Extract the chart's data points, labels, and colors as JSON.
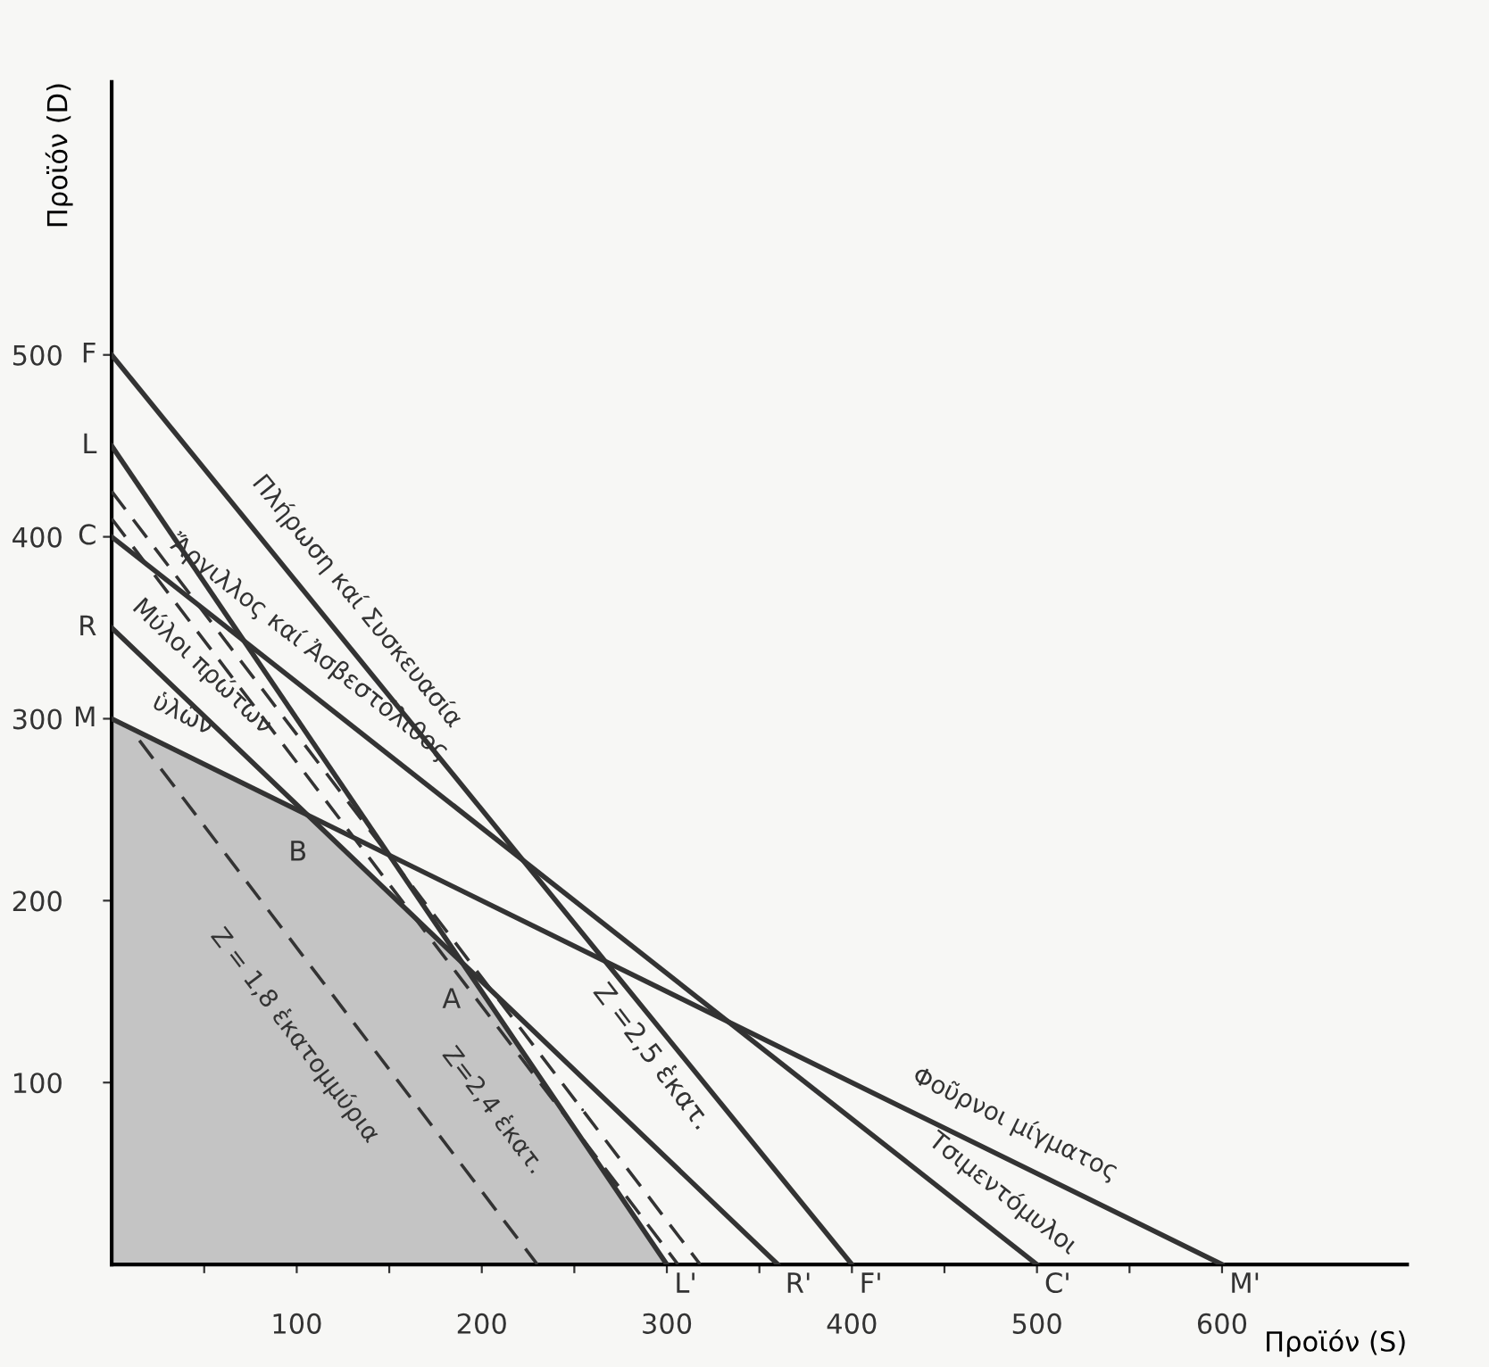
{
  "chart_data": {
    "type": "line",
    "xlabel": "Προϊόν (S)",
    "ylabel": "Προϊόν (D)",
    "xlim": [
      0,
      700
    ],
    "ylim": [
      0,
      650
    ],
    "xticks": [
      {
        "value": 50,
        "label": null
      },
      100,
      {
        "value": 150,
        "label": null
      },
      200,
      {
        "value": 250,
        "label": null
      },
      300,
      {
        "value": 350,
        "label": null
      },
      400,
      {
        "value": 450,
        "label": null
      },
      500,
      {
        "value": 550,
        "label": null
      },
      600
    ],
    "yticks": [
      100,
      200,
      300,
      400,
      500
    ],
    "grid": false,
    "series": [
      {
        "type": "area",
        "color": "#c4c4c4",
        "x": [
          0,
          106,
          189,
          300
        ],
        "values": [
          300,
          247,
          166,
          0
        ]
      },
      {
        "color": "#333333",
        "x": [
          0,
          400
        ],
        "values": [
          500,
          0
        ]
      },
      {
        "color": "#333333",
        "x": [
          0,
          300
        ],
        "values": [
          450,
          0
        ]
      },
      {
        "color": "#333333",
        "x": [
          0,
          500
        ],
        "values": [
          400,
          0
        ]
      },
      {
        "color": "#333333",
        "x": [
          0,
          360
        ],
        "values": [
          350,
          0
        ]
      },
      {
        "color": "#333333",
        "x": [
          0,
          600
        ],
        "values": [
          300,
          0
        ]
      },
      {
        "color": "#333333",
        "line_style": "dashed",
        "x": [
          15,
          230
        ],
        "values": [
          288,
          0
        ]
      },
      {
        "color": "#333333",
        "line_style": "dashed",
        "x": [
          0,
          306
        ],
        "values": [
          410,
          0
        ]
      },
      {
        "color": "#333333",
        "line_style": "dashed",
        "x": [
          0,
          318
        ],
        "values": [
          425,
          0
        ]
      }
    ],
    "annotations": [
      {
        "text": "F",
        "x": 0,
        "y": 500
      },
      {
        "text": "L",
        "x": 0,
        "y": 450
      },
      {
        "text": "C",
        "x": 0,
        "y": 400
      },
      {
        "text": "R",
        "x": 0,
        "y": 350
      },
      {
        "text": "M",
        "x": 0,
        "y": 300
      },
      {
        "text": "B",
        "x": 106,
        "y": 247
      },
      {
        "text": "A",
        "x": 189,
        "y": 166
      },
      {
        "text": "F'",
        "x": 400,
        "y": 0
      },
      {
        "text": "C'",
        "x": 500,
        "y": 0
      },
      {
        "text": "R'",
        "x": 360,
        "y": 0
      },
      {
        "text": "L'",
        "x": 300,
        "y": 0
      },
      {
        "text": "M'",
        "x": 600,
        "y": 0
      },
      {
        "text": "Πλήρωση καί Συσκευασία",
        "x": 118,
        "y": 352.5
      },
      {
        "text": "Ἄργιλλος καί Ἀσβεστόλιθος",
        "x": 95,
        "y": 324
      },
      {
        "text": "Μύλοι πρώτων",
        "x": 36,
        "y": 315
      },
      {
        "text": "ὑλῶν",
        "x": 30,
        "y": 285
      },
      {
        "text": "Φοῦρνοι μίγματος",
        "x": 480,
        "y": 60
      },
      {
        "text": "Τσιμεντόμυλοι",
        "x": 470,
        "y": 24
      },
      {
        "text": "Z = 1,8 ἑκατομμύρια",
        "x": 122.5,
        "y": 144
      },
      {
        "text": "Z=2,4 ἑκατ.",
        "x": 229.5,
        "y": 102.5
      },
      {
        "text": "Z =2,5 ἑκατ.",
        "x": 254.4,
        "y": 85
      }
    ]
  }
}
